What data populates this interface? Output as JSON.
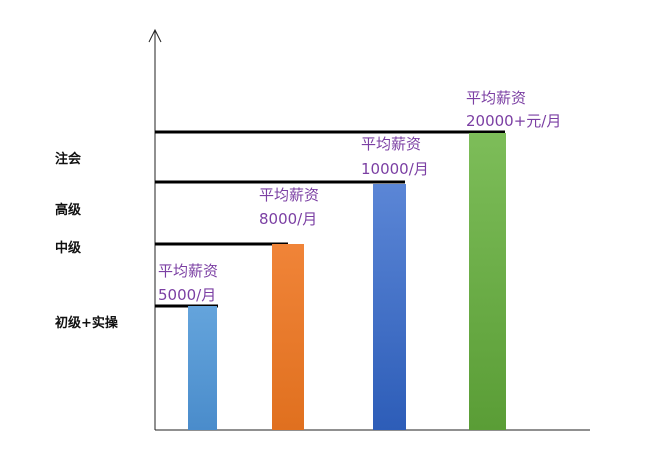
{
  "chart_data": {
    "type": "bar",
    "title": "",
    "xlabel": "",
    "ylabel": "",
    "ylim": [
      0,
      30000
    ],
    "grid": false,
    "categories": [
      "初级+实操",
      "中级",
      "高级",
      "注会"
    ],
    "values": [
      5000,
      8000,
      10000,
      20000
    ],
    "series": [
      {
        "values": [
          5000,
          8000,
          10000,
          20000
        ]
      }
    ],
    "bar_labels": [
      {
        "line1": "平均薪资",
        "line2": "5000/月"
      },
      {
        "line1": "平均薪资",
        "line2": "8000/月"
      },
      {
        "line1": "平均薪资",
        "line2": "10000/月"
      },
      {
        "line1": "平均薪资",
        "line2": "20000+元/月"
      }
    ],
    "level_labels": [
      "注会",
      "高级",
      "中级",
      "初级+实操"
    ],
    "colors": [
      "#5b9bd5",
      "#ed7d31",
      "#4472c4",
      "#70ad47"
    ],
    "label_color": "#7b3fa3"
  }
}
